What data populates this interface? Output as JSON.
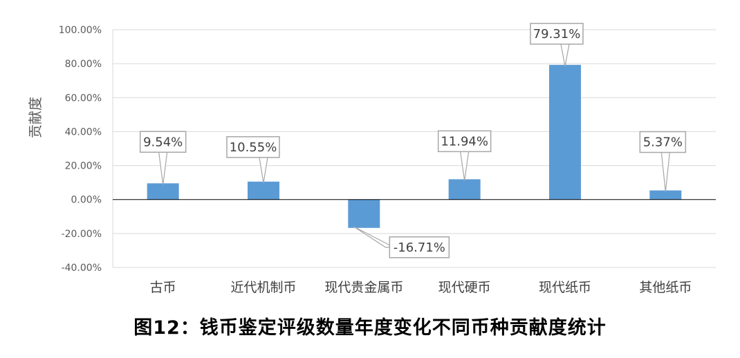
{
  "chart_data": {
    "type": "bar",
    "categories": [
      "古币",
      "近代机制币",
      "现代贵金属币",
      "现代硬币",
      "现代纸币",
      "其他纸币"
    ],
    "values": [
      9.54,
      10.55,
      -16.71,
      11.94,
      79.31,
      5.37
    ],
    "data_labels": [
      "9.54%",
      "10.55%",
      "-16.71%",
      "11.94%",
      "79.31%",
      "5.37%"
    ],
    "ylabel": "贡献度",
    "ylim": [
      -40,
      100
    ],
    "y_ticks": [
      100,
      80,
      60,
      40,
      20,
      0,
      -20,
      -40
    ],
    "y_tick_labels": [
      "100.00%",
      "80.00%",
      "60.00%",
      "40.00%",
      "20.00%",
      "0.00%",
      "-20.00%",
      "-40.00%"
    ],
    "grid": true,
    "bar_color": "#5B9BD5"
  },
  "caption": "图12：钱币鉴定评级数量年度变化不同币种贡献度统计"
}
